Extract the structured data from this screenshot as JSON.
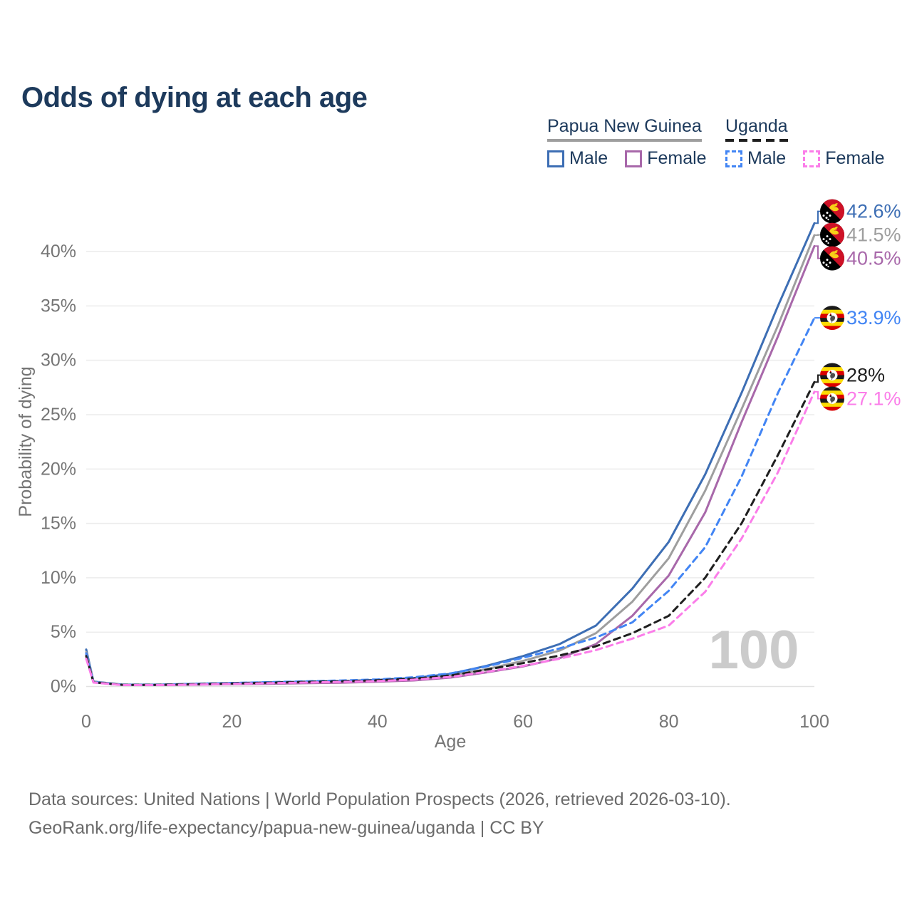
{
  "title": "Odds of dying at each age",
  "legend": {
    "groups": [
      {
        "label": "Papua New Guinea",
        "rule": {
          "style": "solid",
          "color": "#9e9e9e"
        },
        "items": [
          {
            "label": "Male",
            "color": "#3d6eb4",
            "dashed": false
          },
          {
            "label": "Female",
            "color": "#a868aa",
            "dashed": false
          }
        ]
      },
      {
        "label": "Uganda",
        "rule": {
          "style": "dashed",
          "color": "#1f1f1f"
        },
        "items": [
          {
            "label": "Male",
            "color": "#4285f4",
            "dashed": true
          },
          {
            "label": "Female",
            "color": "#fb7de9",
            "dashed": true
          }
        ]
      }
    ]
  },
  "chart_data": {
    "type": "line",
    "title": "Odds of dying at each age",
    "xlabel": "Age",
    "ylabel": "Probability of dying",
    "watermark": "100",
    "grid": "horizontal",
    "xlim": [
      0,
      100
    ],
    "ylim": [
      0,
      45
    ],
    "x_ticks": [
      0,
      20,
      40,
      60,
      80,
      100
    ],
    "y_ticks": {
      "values": [
        0,
        5,
        10,
        15,
        20,
        25,
        30,
        35,
        40
      ],
      "labels": [
        "0%",
        "5%",
        "10%",
        "15%",
        "20%",
        "25%",
        "30%",
        "35%",
        "40%"
      ]
    },
    "ages": [
      0,
      1,
      5,
      10,
      15,
      20,
      25,
      30,
      35,
      40,
      45,
      50,
      55,
      60,
      65,
      70,
      75,
      80,
      85,
      90,
      95,
      100
    ],
    "series": [
      {
        "country": "Papua New Guinea",
        "sex": "male",
        "label": "Male",
        "color": "#3d6eb4",
        "dashed": false,
        "flag": "papua-new-guinea",
        "end_label": "42.6%",
        "values": [
          3.4,
          0.45,
          0.17,
          0.17,
          0.25,
          0.32,
          0.38,
          0.44,
          0.5,
          0.6,
          0.78,
          1.15,
          1.9,
          2.8,
          3.9,
          5.6,
          9.0,
          13.3,
          19.5,
          27.0,
          35.0,
          42.6
        ]
      },
      {
        "country": "Papua New Guinea",
        "sex": "total",
        "label": "Papua New Guinea",
        "color": "#9e9e9e",
        "dashed": false,
        "flag": "papua-new-guinea",
        "end_label": "41.5%",
        "values": [
          3.15,
          0.42,
          0.16,
          0.16,
          0.22,
          0.28,
          0.33,
          0.38,
          0.44,
          0.52,
          0.68,
          1.0,
          1.6,
          2.35,
          3.3,
          4.9,
          7.8,
          11.8,
          18.0,
          25.5,
          33.2,
          41.5
        ]
      },
      {
        "country": "Papua New Guinea",
        "sex": "female",
        "label": "Female",
        "color": "#a868aa",
        "dashed": false,
        "flag": "papua-new-guinea",
        "end_label": "40.5%",
        "values": [
          2.9,
          0.38,
          0.14,
          0.13,
          0.17,
          0.21,
          0.25,
          0.3,
          0.35,
          0.44,
          0.56,
          0.82,
          1.3,
          1.85,
          2.6,
          3.9,
          6.5,
          10.2,
          16.0,
          24.3,
          32.2,
          40.5
        ]
      },
      {
        "country": "Uganda",
        "sex": "male",
        "label": "Male",
        "color": "#4285f4",
        "dashed": true,
        "flag": "uganda",
        "end_label": "33.9%",
        "values": [
          3.05,
          0.4,
          0.16,
          0.16,
          0.24,
          0.32,
          0.4,
          0.47,
          0.55,
          0.65,
          0.85,
          1.2,
          1.85,
          2.65,
          3.5,
          4.5,
          5.9,
          8.8,
          12.8,
          19.3,
          27.0,
          33.9
        ]
      },
      {
        "country": "Uganda",
        "sex": "total",
        "label": "Uganda",
        "color": "#1f1f1f",
        "dashed": true,
        "flag": "uganda",
        "end_label": "28%",
        "values": [
          2.8,
          0.38,
          0.15,
          0.15,
          0.21,
          0.28,
          0.35,
          0.42,
          0.48,
          0.57,
          0.72,
          1.0,
          1.55,
          2.15,
          2.85,
          3.7,
          4.9,
          6.5,
          10.0,
          15.0,
          21.3,
          28.0
        ]
      },
      {
        "country": "Uganda",
        "sex": "female",
        "label": "Female",
        "color": "#fb7de9",
        "dashed": true,
        "flag": "uganda",
        "end_label": "27.1%",
        "values": [
          2.55,
          0.36,
          0.13,
          0.13,
          0.18,
          0.24,
          0.3,
          0.36,
          0.42,
          0.5,
          0.63,
          0.88,
          1.35,
          1.9,
          2.55,
          3.35,
          4.4,
          5.6,
          8.7,
          13.6,
          19.7,
          27.1
        ]
      }
    ]
  },
  "footer": {
    "line1": "Data sources: United Nations | World Population Prospects (2026, retrieved 2026-03-10).",
    "line2": "GeoRank.org/life-expectancy/papua-new-guinea/uganda | CC BY"
  }
}
